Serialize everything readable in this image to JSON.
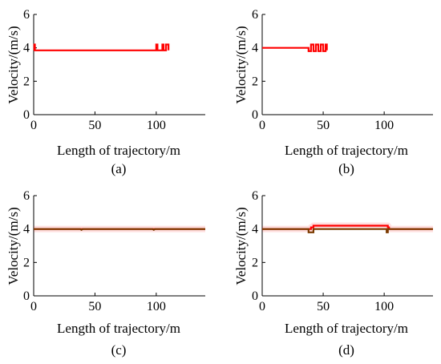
{
  "figure": {
    "captions": [
      "(a)",
      "(b)",
      "(c)",
      "(d)"
    ]
  },
  "chart_data": [
    {
      "type": "line",
      "panel": "(a)",
      "xlabel": "Length of trajectory/m",
      "ylabel": "Velocity/(m/s)",
      "xlim": [
        0,
        140
      ],
      "ylim": [
        0,
        6
      ],
      "xticks": [
        0,
        50,
        100
      ],
      "yticks": [
        0,
        2,
        4,
        6
      ],
      "grid": false,
      "series": [
        {
          "color": "#ff0000",
          "x": [
            0,
            0.5,
            0.5,
            1,
            1,
            100,
            100,
            101,
            101,
            105,
            105,
            106,
            106,
            108,
            108,
            110,
            110
          ],
          "y": [
            3.85,
            3.85,
            4.2,
            4.2,
            3.85,
            3.85,
            4.2,
            4.2,
            3.85,
            3.85,
            4.2,
            4.2,
            3.85,
            3.85,
            4.2,
            4.2,
            3.85
          ]
        }
      ]
    },
    {
      "type": "line",
      "panel": "(b)",
      "xlabel": "Length of trajectory/m",
      "ylabel": "Velocity/(m/s)",
      "xlim": [
        0,
        140
      ],
      "ylim": [
        0,
        6
      ],
      "xticks": [
        0,
        50,
        100
      ],
      "yticks": [
        0,
        2,
        4,
        6
      ],
      "grid": false,
      "series": [
        {
          "color": "#ff0000",
          "x": [
            0,
            38,
            38,
            40,
            40,
            42,
            42,
            44,
            44,
            46,
            46,
            48,
            48,
            50,
            50,
            52,
            52,
            53,
            53
          ],
          "y": [
            4.0,
            4.0,
            3.8,
            3.8,
            4.2,
            4.2,
            3.8,
            3.8,
            4.2,
            4.2,
            3.8,
            3.8,
            4.2,
            4.2,
            3.8,
            3.8,
            4.2,
            4.2,
            3.85
          ]
        }
      ]
    },
    {
      "type": "line",
      "panel": "(c)",
      "xlabel": "Length of trajectory/m",
      "ylabel": "Velocity/(m/s)",
      "xlim": [
        0,
        140
      ],
      "ylim": [
        0,
        6
      ],
      "xticks": [
        0,
        50,
        100
      ],
      "yticks": [
        0,
        2,
        4,
        6
      ],
      "grid": false,
      "series": [
        {
          "color": "#ff0000",
          "x": [
            0,
            140
          ],
          "y": [
            4.0,
            4.0
          ]
        },
        {
          "color": "#7b3b00",
          "x": [
            0,
            38,
            39,
            40,
            97,
            98,
            99,
            140
          ],
          "y": [
            4.0,
            4.0,
            3.95,
            4.0,
            4.0,
            3.95,
            4.0,
            4.0
          ]
        }
      ]
    },
    {
      "type": "line",
      "panel": "(d)",
      "xlabel": "Length of trajectory/m",
      "ylabel": "Velocity/(m/s)",
      "xlim": [
        0,
        140
      ],
      "ylim": [
        0,
        6
      ],
      "xticks": [
        0,
        50,
        100
      ],
      "yticks": [
        0,
        2,
        4,
        6
      ],
      "grid": false,
      "series": [
        {
          "color": "#ff0000",
          "x": [
            0,
            40,
            40,
            42,
            42,
            103,
            103,
            104,
            104,
            140
          ],
          "y": [
            4.0,
            4.0,
            4.1,
            4.1,
            4.2,
            4.2,
            4.1,
            4.1,
            4.0,
            4.0
          ]
        },
        {
          "color": "#7b3b00",
          "x": [
            0,
            38,
            38,
            42,
            42,
            102,
            102,
            103,
            103,
            140
          ],
          "y": [
            4.0,
            4.0,
            3.8,
            3.8,
            4.0,
            4.0,
            3.8,
            3.8,
            4.0,
            4.0
          ]
        }
      ]
    }
  ]
}
